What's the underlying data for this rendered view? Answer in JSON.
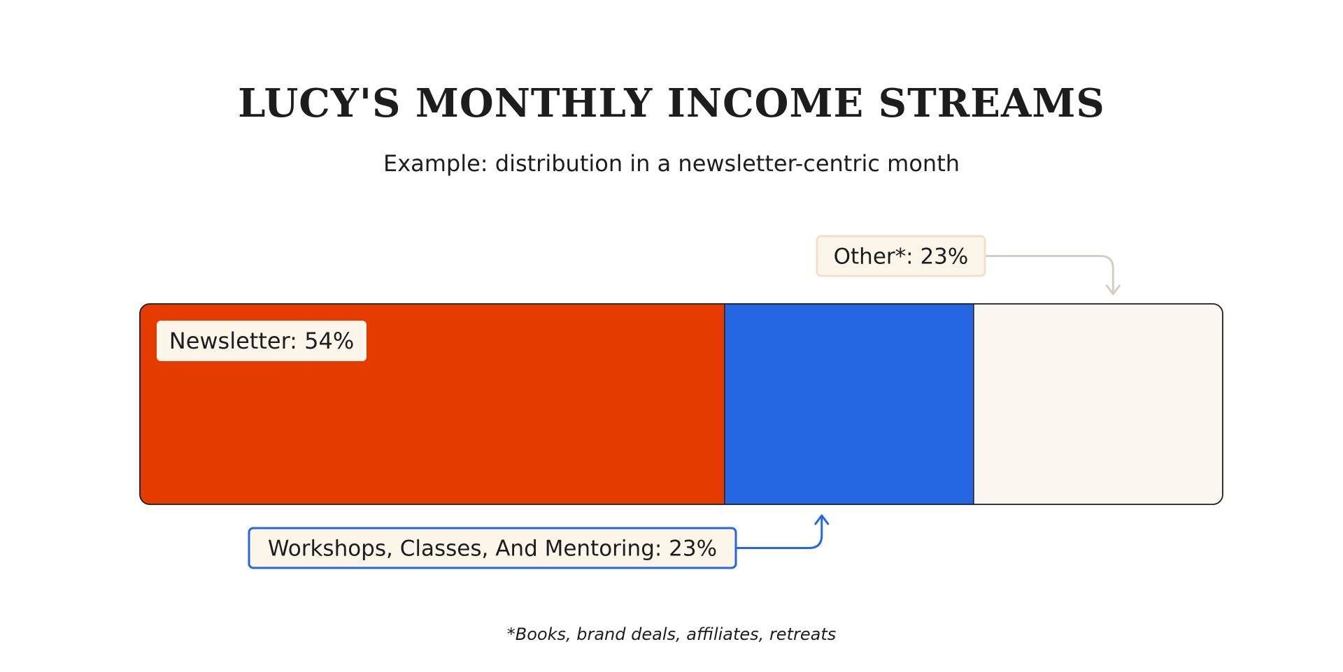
{
  "chart_data": {
    "type": "bar",
    "title": "LUCY'S MONTHLY INCOME STREAMS",
    "subtitle": "Example: distribution in a newsletter-centric month",
    "footnote": "*Books, brand deals, affiliates, retreats",
    "stacked": true,
    "orientation": "horizontal",
    "series": [
      {
        "name": "Newsletter",
        "value": 54,
        "label": "Newsletter: 54%",
        "color": "#e63b00",
        "label_style": "inside"
      },
      {
        "name": "Workshops, Classes, And Mentoring",
        "value": 23,
        "label": "Workshops, Classes, And Mentoring: 23%",
        "color": "#2566e3",
        "label_style": "callout-below"
      },
      {
        "name": "Other*",
        "value": 23,
        "label": "Other*:  23%",
        "color": "#fbf7f0",
        "label_style": "callout-above"
      }
    ],
    "colors": {
      "outline": "#1d1d1d",
      "label_bg": "#fbf5ea",
      "other_callout_border": "#f1dfc6",
      "other_arrow": "#d6cfc1",
      "workshop_callout_border": "#2566e3"
    }
  }
}
